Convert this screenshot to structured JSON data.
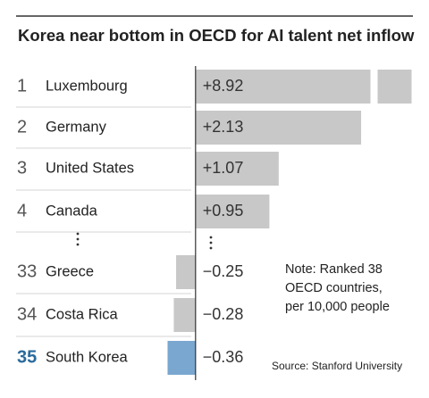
{
  "chart_data": {
    "type": "bar",
    "orientation": "horizontal",
    "title": "Korea near bottom in OECD for AI talent net inflow",
    "ranks": [
      1,
      2,
      3,
      4,
      33,
      34,
      35
    ],
    "categories": [
      "Luxembourg",
      "Germany",
      "United States",
      "Canada",
      "Greece",
      "Costa Rica",
      "South Korea"
    ],
    "values": [
      8.92,
      2.13,
      1.07,
      0.95,
      -0.25,
      -0.28,
      -0.36
    ],
    "value_labels": [
      "+8.92",
      "+2.13",
      "+1.07",
      "+0.95",
      "−0.25",
      "−0.28",
      "−0.36"
    ],
    "color": "#c8c8c8",
    "colors": [
      "#c8c8c8",
      "#c8c8c8",
      "#c8c8c8",
      "#c8c8c8",
      "#c8c8c8",
      "#c8c8c8",
      "#7aa7cf"
    ],
    "xlim": [
      -0.4,
      2.25
    ],
    "note": [
      "Note: Ranked 38",
      "OECD countries,",
      "per 10,000 people"
    ],
    "source": "Source: Stanford University"
  }
}
